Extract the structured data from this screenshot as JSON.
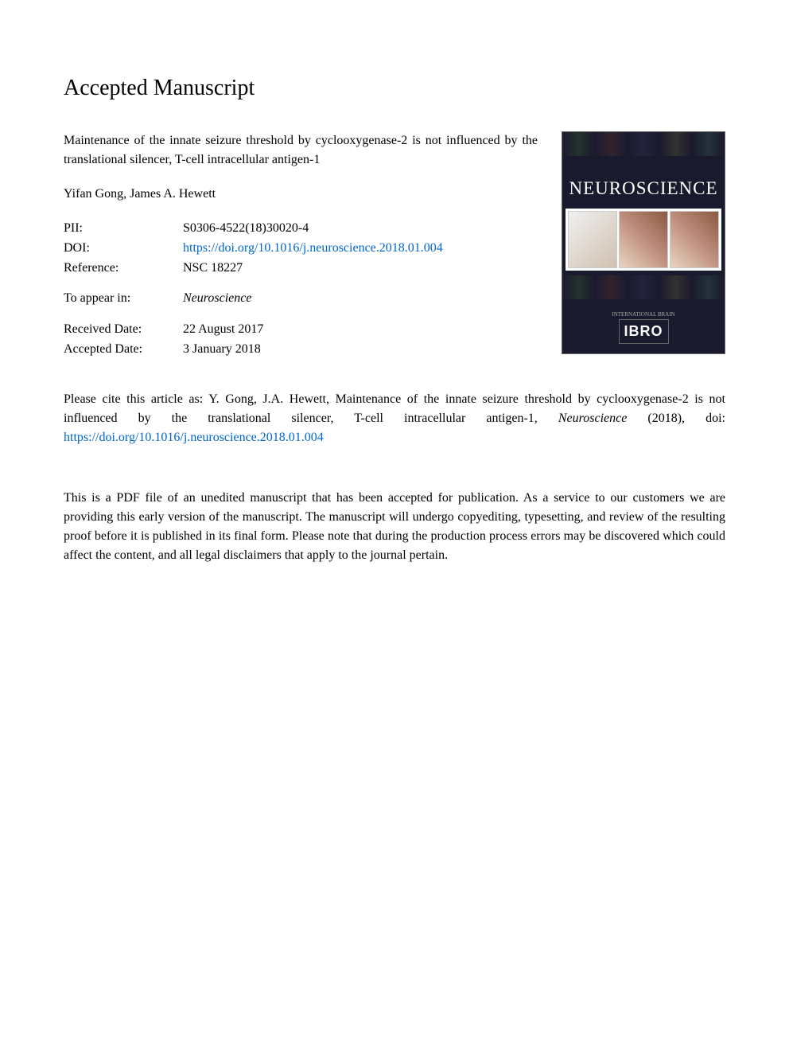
{
  "header": {
    "title": "Accepted Manuscript"
  },
  "article": {
    "title": "Maintenance of the innate seizure threshold by cyclooxygenase-2 is not influenced by the translational silencer, T-cell intracellular antigen-1",
    "authors": "Yifan Gong, James A. Hewett"
  },
  "metadata": {
    "pii_label": "PII:",
    "pii_value": "S0306-4522(18)30020-4",
    "doi_label": "DOI:",
    "doi_value": "https://doi.org/10.1016/j.neuroscience.2018.01.004",
    "reference_label": "Reference:",
    "reference_value": "NSC 18227",
    "appear_label": "To appear in:",
    "appear_value": "Neuroscience",
    "received_label": "Received Date:",
    "received_value": "22 August 2017",
    "accepted_label": "Accepted Date:",
    "accepted_value": "3 January 2018"
  },
  "journal_cover": {
    "title": "NEUROSCIENCE",
    "publisher_label": "INTERNATIONAL BRAIN",
    "publisher": "IBRO",
    "background_color": "#1a1a2e",
    "text_color": "#ffffff"
  },
  "citation": {
    "prefix": "Please cite this article as: Y. Gong, J.A. Hewett, Maintenance of the innate seizure threshold by cyclooxygenase-2 is not influenced by the translational silencer, T-cell intracellular antigen-1, ",
    "journal": "Neuroscience",
    "year": " (2018), doi: ",
    "doi_link": "https://doi.org/10.1016/j.neuroscience.2018.01.004"
  },
  "disclaimer": {
    "text": "This is a PDF file of an unedited manuscript that has been accepted for publication. As a service to our customers we are providing this early version of the manuscript. The manuscript will undergo copyediting, typesetting, and review of the resulting proof before it is published in its final form. Please note that during the production process errors may be discovered which could affect the content, and all legal disclaimers that apply to the journal pertain."
  },
  "colors": {
    "background": "#ffffff",
    "text": "#000000",
    "link": "#0066cc"
  },
  "typography": {
    "header_fontsize": 28,
    "body_fontsize": 16,
    "font_family": "Georgia, Times New Roman, serif"
  }
}
